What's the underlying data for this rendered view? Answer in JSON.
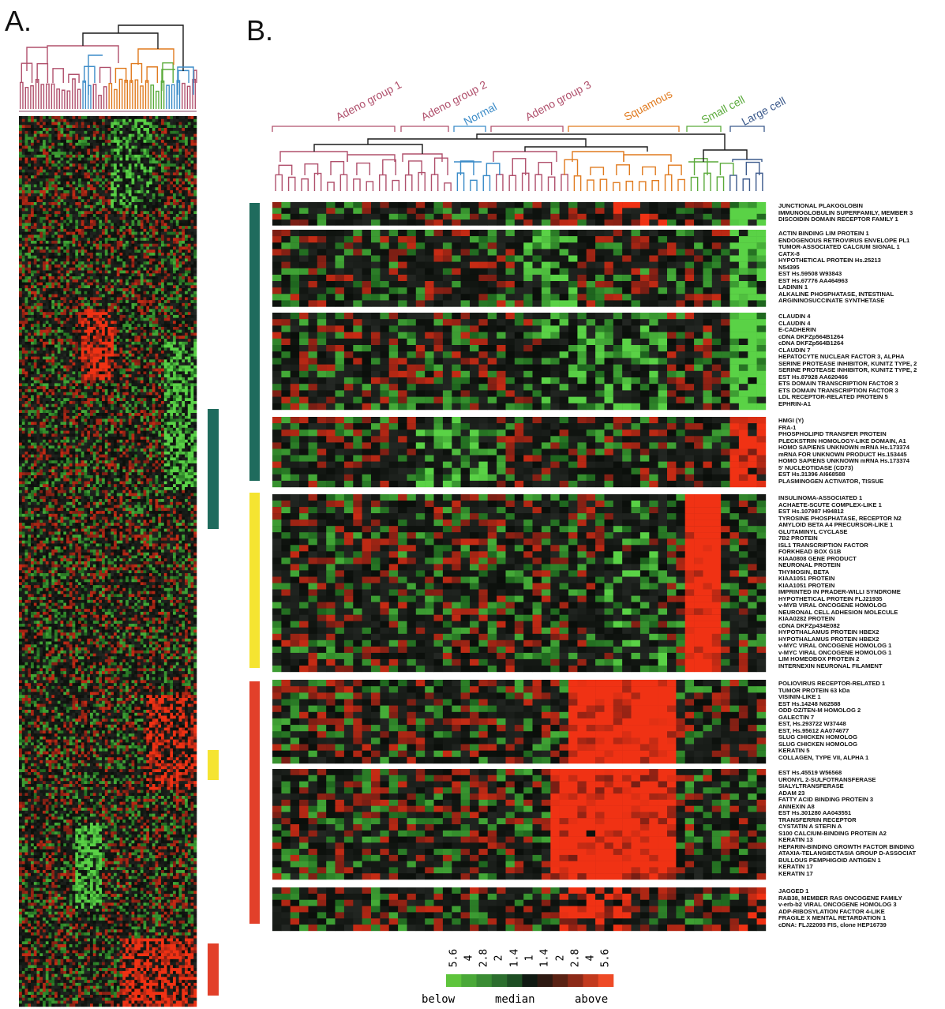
{
  "panels": {
    "a_label": "A.",
    "b_label": "B."
  },
  "colors": {
    "adeno": "#b0506c",
    "normal": "#3c8cc8",
    "squamous": "#e07a1e",
    "small": "#5aaa3a",
    "large": "#3c5a8c",
    "teal_bar": "#1f6b5d",
    "yellow_bar": "#f5e431",
    "red_bar": "#e2402a"
  },
  "groups": [
    {
      "label": "Adeno group 1",
      "color": "#b0506c"
    },
    {
      "label": "Adeno group 2",
      "color": "#b0506c"
    },
    {
      "label": "Normal",
      "color": "#3c8cc8"
    },
    {
      "label": "Adeno group 3",
      "color": "#b0506c"
    },
    {
      "label": "Squamous",
      "color": "#e07a1e"
    },
    {
      "label": "Small cell",
      "color": "#5aaa3a"
    },
    {
      "label": "Large cell",
      "color": "#3c5a8c"
    }
  ],
  "gene_blocks": [
    [
      "JUNCTIONAL PLAKOGLOBIN",
      "IMMUNOGLOBULIN SUPERFAMILY, MEMBER 3",
      "DISCOIDIN DOMAIN RECEPTOR FAMILY 1"
    ],
    [
      "ACTIN BINDING LIM PROTEIN 1",
      "ENDOGENOUS RETROVIRUS ENVELOPE PL1",
      "TUMOR-ASSOCIATED CALCIUM SIGNAL 1",
      "CATX-8",
      "HYPOTHETICAL PROTEIN Hs.25213",
      "N54395",
      "EST Hs.59508 W93843",
      "EST Hs.67776 AA464963",
      "LADININ 1",
      "ALKALINE PHOSPHATASE, INTESTINAL",
      "ARGININOSUCCINATE SYNTHETASE"
    ],
    [
      "CLAUDIN 4",
      "CLAUDIN 4",
      "E-CADHERIN",
      "cDNA DKFZp564B1264",
      "cDNA DKFZp564B1264",
      "CLAUDIN 7",
      "HEPATOCYTE NUCLEAR FACTOR 3, ALPHA",
      "SERINE PROTEASE INHIBITOR, KUNITZ TYPE, 2",
      "SERINE PROTEASE INHIBITOR, KUNITZ TYPE, 2",
      "EST Hs.87928 AA620466",
      "ETS DOMAIN TRANSCRIPTION FACTOR 3",
      "ETS DOMAIN TRANSCRIPTION FACTOR 3",
      "LDL RECEPTOR-RELATED PROTEIN 5",
      "EPHRIN-A1"
    ],
    [
      "HMGI (Y)",
      "FRA-1",
      "PHOSPHOLIPID TRANSFER PROTEIN",
      "PLECKSTRIN HOMOLOGY-LIKE DOMAIN, A1",
      "HOMO SAPIENS UNKNOWN mRNA Hs.173374",
      "mRNA FOR UNKNOWN PRODUCT Hs.153445",
      "HOMO SAPIENS UNKNOWN mRNA Hs.173374",
      "5' NUCLEOTIDASE (CD73)",
      "EST Hs.31396 AI668588",
      "PLASMINOGEN ACTIVATOR, TISSUE"
    ],
    [
      "INSULINOMA-ASSOCIATED 1",
      "ACHAETE-SCUTE COMPLEX-LIKE 1",
      "EST Hs.107987 H94812",
      "TYROSINE PHOSPHATASE, RECEPTOR N2",
      "AMYLOID BETA A4 PRECURSOR-LIKE 1",
      "GLUTAMINYL CYCLASE",
      "7B2 PROTEIN",
      "ISL1 TRANSCRIPTION FACTOR",
      "FORKHEAD BOX G1B",
      "KIAA0808 GENE PRODUCT",
      "NEURONAL PROTEIN",
      "THYMOSIN, BETA",
      "KIAA1051 PROTEIN",
      "KIAA1051 PROTEIN",
      "IMPRINTED IN PRADER-WILLI SYNDROME",
      "HYPOTHETICAL PROTEIN FLJ21935",
      "v-MYB VIRAL ONCOGENE HOMOLOG",
      "NEURONAL CELL ADHESION MOLECULE",
      "KIAA0282 PROTEIN",
      "cDNA DKFZp434E082",
      "HYPOTHALAMUS PROTEIN HBEX2",
      "HYPOTHALAMUS PROTEIN HBEX2",
      "v-MYC VIRAL ONCOGENE HOMOLOG 1",
      "v-MYC VIRAL ONCOGENE HOMOLOG 1",
      "LIM HOMEOBOX PROTEIN 2",
      "INTERNEXIN NEURONAL FILAMENT"
    ],
    [
      "POLIOVIRUS RECEPTOR-RELATED 1",
      "TUMOR PROTEIN 63 kDa",
      "VISININ-LIKE 1",
      "EST Hs.14248 N62588",
      "ODD OZ/TEN-M HOMOLOG 2",
      "GALECTIN 7",
      "EST, Hs.293722 W37448",
      "EST, Hs.95612 AA074677",
      "SLUG CHICKEN HOMOLOG",
      "SLUG CHICKEN HOMOLOG",
      "KERATIN 5",
      "COLLAGEN, TYPE VII, ALPHA 1"
    ],
    [
      "EST Hs.45519 W56568",
      "URONYL 2-SULFOTRANSFERASE",
      "SIALYLTRANSFERASE",
      "ADAM 23",
      "FATTY ACID BINDING PROTEIN 3",
      "ANNEXIN A8",
      "EST Hs.301280 AA043551",
      "TRANSFERRIN RECEPTOR",
      "CYSTATIN A STEFIN A",
      "S100 CALCIUM-BINDING PROTEIN A2",
      "KERATIN 13",
      "HEPARIN-BINDING GROWTH FACTOR BINDING",
      "ATAXIA-TELANGIECTASIA GROUP D-ASSOCIAT",
      "BULLOUS PEMPHIGOID ANTIGEN 1",
      "KERATIN 17",
      "KERATIN 17"
    ],
    [
      "JAGGED 1",
      "RAB38, MEMBER RAS ONCOGENE FAMILY",
      "v-erb-b2 VIRAL ONCOGENE HOMOLOG 3",
      "ADP-RIBOSYLATION FACTOR 4-LIKE",
      "FRAGILE X MENTAL RETARDATION 1",
      "cDNA: FLJ22093 FIS, clone HEP16739"
    ]
  ],
  "legend": {
    "ticks": [
      "5.6",
      "4",
      "2.8",
      "2",
      "1.4",
      "1",
      "1.4",
      "2",
      "2.8",
      "4",
      "5.6"
    ],
    "below": "below",
    "median": "median",
    "above": "above"
  }
}
